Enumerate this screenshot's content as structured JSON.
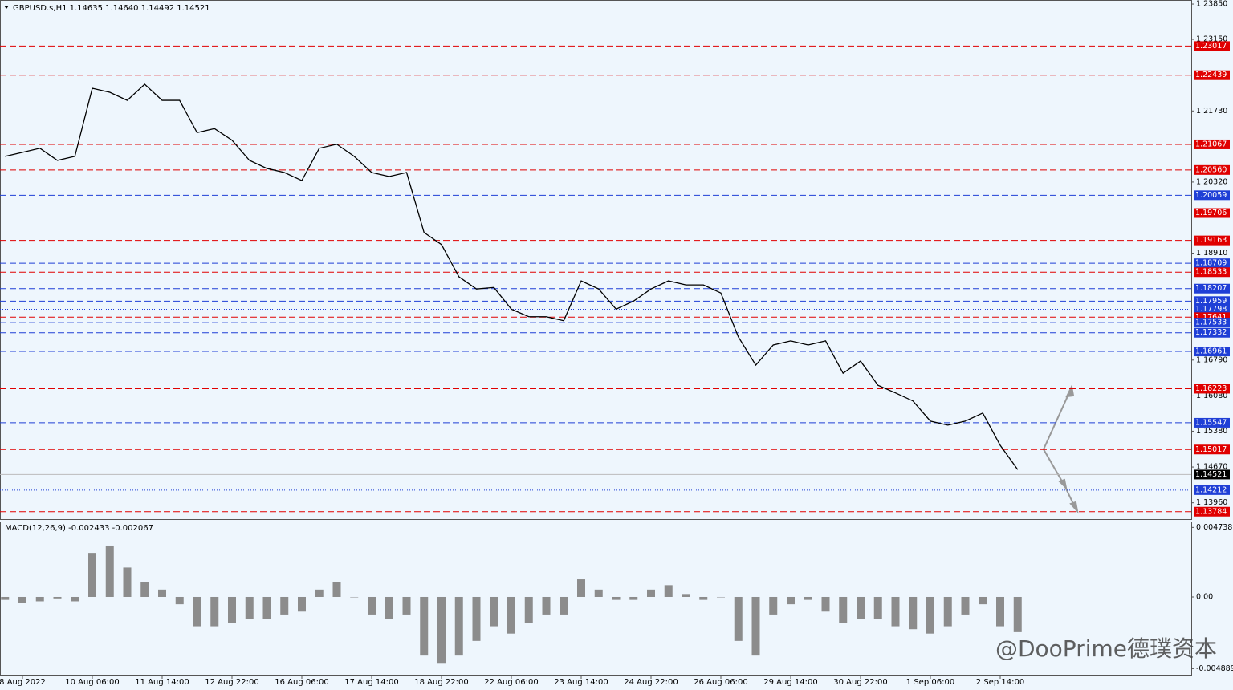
{
  "chart_data": [
    {
      "type": "line",
      "title": "GBPUSD.s,H1  1.14635 1.14640 1.14492 1.14521",
      "categories": [
        null,
        "8 Aug 2022",
        null,
        null,
        null,
        "10 Aug 06:00",
        null,
        null,
        null,
        "11 Aug 14:00",
        null,
        null,
        null,
        "12 Aug 22:00",
        null,
        null,
        null,
        "16 Aug 06:00",
        null,
        null,
        null,
        "17 Aug 14:00",
        null,
        null,
        null,
        "18 Aug 22:00",
        null,
        null,
        null,
        "22 Aug 06:00",
        null,
        null,
        null,
        "23 Aug 14:00",
        null,
        null,
        null,
        "24 Aug 22:00",
        null,
        null,
        null,
        "26 Aug 06:00",
        null,
        null,
        null,
        "29 Aug 14:00",
        null,
        null,
        null,
        "30 Aug 22:00",
        null,
        null,
        null,
        "1 Sep 06:00",
        null,
        null,
        null,
        "2 Sep 14:00",
        null
      ],
      "series": [
        {
          "color": "#000000",
          "values": [
            1.2083,
            1.2091,
            1.2099,
            1.2075,
            1.2083,
            1.2218,
            1.221,
            1.2194,
            1.2226,
            1.2194,
            1.2194,
            1.213,
            1.2138,
            1.2115,
            1.2075,
            1.2059,
            1.2051,
            1.2035,
            1.2099,
            1.2107,
            1.2083,
            1.2051,
            1.2043,
            1.2051,
            1.1932,
            1.1908,
            1.1844,
            1.182,
            1.1823,
            1.178,
            1.1765,
            1.1765,
            1.1757,
            1.1836,
            1.182,
            1.178,
            1.1796,
            1.182,
            1.1836,
            1.1828,
            1.1828,
            1.1812,
            1.1725,
            1.1669,
            1.1709,
            1.1717,
            1.1709,
            1.1717,
            1.1653,
            1.1677,
            1.1629,
            1.1614,
            1.1598,
            1.1558,
            1.155,
            1.1558,
            1.1574,
            1.151,
            1.1462
          ]
        }
      ],
      "ylim": [
        1.13621,
        1.2393
      ],
      "yticks": [
        {
          "value": 1.2385,
          "label": "1.23850"
        },
        {
          "value": 1.2315,
          "label": "1.23150"
        },
        {
          "value": 1.2173,
          "label": "1.21730"
        },
        {
          "value": 1.2032,
          "label": "1.20320"
        },
        {
          "value": 1.1891,
          "label": "1.18910"
        },
        {
          "value": 1.1679,
          "label": "1.16790"
        },
        {
          "value": 1.1608,
          "label": "1.16080"
        },
        {
          "value": 1.1538,
          "label": "1.15380"
        },
        {
          "value": 1.1467,
          "label": "1.14670"
        },
        {
          "value": 1.1396,
          "label": "1.13960"
        }
      ],
      "levels": [
        {
          "value": 1.23017,
          "label": "1.23017",
          "color": "#e00000",
          "style": "dashed"
        },
        {
          "value": 1.22439,
          "label": "1.22439",
          "color": "#e00000",
          "style": "dashed"
        },
        {
          "value": 1.21067,
          "label": "1.21067",
          "color": "#e00000",
          "style": "dashed"
        },
        {
          "value": 1.2056,
          "label": "1.20560",
          "color": "#e00000",
          "style": "dashed"
        },
        {
          "value": 1.20059,
          "label": "1.20059",
          "color": "#1f3fd6",
          "style": "dashed"
        },
        {
          "value": 1.19706,
          "label": "1.19706",
          "color": "#e00000",
          "style": "dashed"
        },
        {
          "value": 1.19163,
          "label": "1.19163",
          "color": "#e00000",
          "style": "dashed"
        },
        {
          "value": 1.18709,
          "label": "1.18709",
          "color": "#1f3fd6",
          "style": "dashed"
        },
        {
          "value": 1.18533,
          "label": "1.18533",
          "color": "#e00000",
          "style": "dashed"
        },
        {
          "value": 1.18207,
          "label": "1.18207",
          "color": "#1f3fd6",
          "style": "dashed"
        },
        {
          "value": 1.17959,
          "label": "1.17959",
          "color": "#1f3fd6",
          "style": "dashed"
        },
        {
          "value": 1.17798,
          "label": "1.17798",
          "color": "#1f3fd6",
          "style": "dotted"
        },
        {
          "value": 1.17641,
          "label": "1.17641",
          "color": "#e00000",
          "style": "dashed"
        },
        {
          "value": 1.17533,
          "label": "1.17533",
          "color": "#1f3fd6",
          "style": "dashed"
        },
        {
          "value": 1.17332,
          "label": "1.17332",
          "color": "#1f3fd6",
          "style": "dashed"
        },
        {
          "value": 1.16961,
          "label": "1.16961",
          "color": "#1f3fd6",
          "style": "dashed"
        },
        {
          "value": 1.16223,
          "label": "1.16223",
          "color": "#e00000",
          "style": "dashed"
        },
        {
          "value": 1.15547,
          "label": "1.15547",
          "color": "#1f3fd6",
          "style": "dashed"
        },
        {
          "value": 1.15017,
          "label": "1.15017",
          "color": "#e00000",
          "style": "dashed"
        },
        {
          "value": 1.14212,
          "label": "1.14212",
          "color": "#1f3fd6",
          "style": "dotted"
        },
        {
          "value": 1.13784,
          "label": "1.13784",
          "color": "#e00000",
          "style": "dashed"
        }
      ],
      "current": {
        "value": 1.14521,
        "label": "1.14521"
      }
    },
    {
      "type": "bar",
      "title": "MACD(12,26,9) -0.002433 -0.002067",
      "series": [
        {
          "color": "#8c8c8c",
          "values": [
            -0.0002,
            -0.0004,
            -0.0003,
            -0.0001,
            -0.0003,
            0.003,
            0.0035,
            0.002,
            0.001,
            0.0005,
            -0.0005,
            -0.002,
            -0.002,
            -0.0018,
            -0.0015,
            -0.0015,
            -0.0012,
            -0.001,
            0.0005,
            0.001,
            0,
            -0.0012,
            -0.0015,
            -0.0012,
            -0.004,
            -0.0045,
            -0.004,
            -0.003,
            -0.002,
            -0.0025,
            -0.0018,
            -0.0012,
            -0.0012,
            0.0012,
            0.0005,
            -0.0002,
            -0.0002,
            0.0005,
            0.0008,
            0.0002,
            -0.0002,
            0,
            -0.003,
            -0.004,
            -0.0012,
            -0.0005,
            -0.0002,
            -0.001,
            -0.0018,
            -0.0015,
            -0.0015,
            -0.002,
            -0.0022,
            -0.0025,
            -0.002,
            -0.0012,
            -0.0005,
            -0.002,
            -0.0024
          ]
        }
      ],
      "ylim": [
        -0.00536,
        0.00514
      ],
      "yticks": [
        {
          "value": 0.004738,
          "label": "0.004738"
        },
        {
          "value": 0,
          "label": "0.00"
        },
        {
          "value": -0.004889,
          "label": "-0.004889"
        }
      ]
    }
  ],
  "watermark": "@DooPrime德璞资本"
}
